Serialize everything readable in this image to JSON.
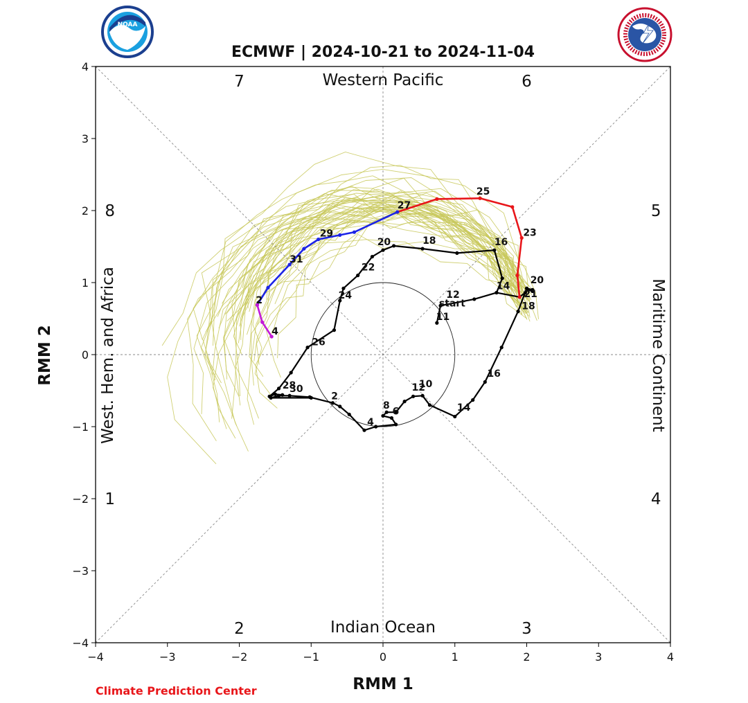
{
  "chart_data": {
    "type": "line",
    "title": "ECMWF | 2024-10-21 to 2024-11-04",
    "xlabel": "RMM 1",
    "ylabel": "RMM 2",
    "xlim": [
      -4,
      4
    ],
    "ylim": [
      -4,
      4
    ],
    "xticks": [
      -4,
      -3,
      -2,
      -1,
      0,
      1,
      2,
      3,
      4
    ],
    "yticks": [
      -4,
      -3,
      -2,
      -1,
      0,
      1,
      2,
      3,
      4
    ],
    "tick_labels": [
      "−4",
      "−3",
      "−2",
      "−1",
      "0",
      "1",
      "2",
      "3",
      "4"
    ],
    "grid": false,
    "region_labels": [
      "Western Pacific",
      "Indian Ocean",
      "West. Hem. and Africa",
      "Maritime Continent"
    ],
    "phase_labels": [
      {
        "phase": "1",
        "x": -3.8,
        "y": -2.0
      },
      {
        "phase": "2",
        "x": -2.0,
        "y": -3.8
      },
      {
        "phase": "3",
        "x": 2.0,
        "y": -3.8
      },
      {
        "phase": "4",
        "x": 3.8,
        "y": -2.0
      },
      {
        "phase": "5",
        "x": 3.8,
        "y": 2.0
      },
      {
        "phase": "6",
        "x": 2.0,
        "y": 3.8
      },
      {
        "phase": "7",
        "x": -2.0,
        "y": 3.8
      },
      {
        "phase": "8",
        "x": -3.8,
        "y": 2.0
      }
    ],
    "unit_circle_radius": 1,
    "series": [
      {
        "kind": "observed",
        "color": "#000000",
        "points": [
          [
            -1.0,
            -0.6
          ],
          [
            -1.56,
            -0.6
          ],
          [
            -1.45,
            -0.57
          ],
          [
            -1.3,
            -0.57
          ],
          [
            -1.02,
            -0.59
          ],
          [
            -0.7,
            -0.67
          ],
          [
            -0.6,
            -0.72
          ],
          [
            -0.47,
            -0.83
          ],
          [
            -0.26,
            -1.05
          ],
          [
            -0.1,
            -1.0
          ],
          [
            0.18,
            -0.97
          ],
          [
            0.12,
            -0.88
          ],
          [
            0.0,
            -0.85
          ],
          [
            0.05,
            -0.8
          ],
          [
            0.18,
            -0.8
          ],
          [
            0.3,
            -0.65
          ],
          [
            0.42,
            -0.58
          ],
          [
            0.55,
            -0.57
          ],
          [
            0.65,
            -0.7
          ],
          [
            1.0,
            -0.86
          ],
          [
            1.25,
            -0.63
          ],
          [
            1.42,
            -0.38
          ],
          [
            1.65,
            0.1
          ],
          [
            1.88,
            0.6
          ],
          [
            2.0,
            0.92
          ],
          [
            2.08,
            0.9
          ],
          [
            2.08,
            0.88
          ],
          [
            2.02,
            0.9
          ],
          [
            1.98,
            0.86
          ],
          [
            1.9,
            0.8
          ],
          [
            1.58,
            0.86
          ],
          [
            1.66,
            1.06
          ],
          [
            1.55,
            1.45
          ],
          [
            1.03,
            1.41
          ],
          [
            0.55,
            1.47
          ],
          [
            0.15,
            1.51
          ],
          [
            0.0,
            1.45
          ],
          [
            -0.15,
            1.36
          ],
          [
            -0.35,
            1.1
          ],
          [
            -0.55,
            0.92
          ],
          [
            -0.6,
            0.75
          ],
          [
            -0.68,
            0.34
          ],
          [
            -1.05,
            0.1
          ],
          [
            -1.28,
            -0.25
          ],
          [
            -1.45,
            -0.47
          ],
          [
            -1.58,
            -0.58
          ],
          [
            -1.5,
            -0.55
          ],
          [
            -1.4,
            -0.56
          ]
        ],
        "labels": [
          {
            "text": "28",
            "x": -1.4,
            "y": -0.47
          },
          {
            "text": "30",
            "x": -1.3,
            "y": -0.52
          },
          {
            "text": "2",
            "x": -0.72,
            "y": -0.62
          },
          {
            "text": "4",
            "x": -0.22,
            "y": -0.98
          },
          {
            "text": "6",
            "x": 0.13,
            "y": -0.83
          },
          {
            "text": "8",
            "x": 0.0,
            "y": -0.75
          },
          {
            "text": "10",
            "x": 0.5,
            "y": -0.45
          },
          {
            "text": "12",
            "x": 0.4,
            "y": -0.5
          },
          {
            "text": "14",
            "x": 1.03,
            "y": -0.78
          },
          {
            "text": "16",
            "x": 1.45,
            "y": -0.31
          },
          {
            "text": "18",
            "x": 1.93,
            "y": 0.63
          },
          {
            "text": "20",
            "x": 2.05,
            "y": 0.99
          },
          {
            "text": "21",
            "x": 1.96,
            "y": 0.8
          },
          {
            "text": "14",
            "x": 1.58,
            "y": 0.91
          },
          {
            "text": "16",
            "x": 1.55,
            "y": 1.52
          },
          {
            "text": "18",
            "x": 0.55,
            "y": 1.54
          },
          {
            "text": "20",
            "x": -0.08,
            "y": 1.52
          },
          {
            "text": "22",
            "x": -0.3,
            "y": 1.17
          },
          {
            "text": "24",
            "x": -0.62,
            "y": 0.78
          },
          {
            "text": "26",
            "x": -0.99,
            "y": 0.13
          },
          {
            "text": "12",
            "x": 0.88,
            "y": 0.79
          },
          {
            "text": "start",
            "x": 0.78,
            "y": 0.67
          },
          {
            "text": "11",
            "x": 0.74,
            "y": 0.48
          }
        ]
      },
      {
        "kind": "observed-start",
        "color": "#000000",
        "points": [
          [
            0.75,
            0.44
          ],
          [
            0.8,
            0.68
          ],
          [
            1.27,
            0.77
          ],
          [
            1.58,
            0.86
          ]
        ]
      },
      {
        "kind": "forecast-red",
        "color": "#e8161a",
        "points": [
          [
            1.9,
            0.8
          ],
          [
            1.87,
            1.1
          ],
          [
            1.93,
            1.62
          ],
          [
            1.8,
            2.05
          ],
          [
            1.35,
            2.17
          ],
          [
            0.75,
            2.16
          ],
          [
            0.2,
            1.98
          ]
        ],
        "labels": [
          {
            "text": "23",
            "x": 1.95,
            "y": 1.65
          },
          {
            "text": "25",
            "x": 1.3,
            "y": 2.22
          }
        ]
      },
      {
        "kind": "forecast-blue",
        "color": "#1c24e6",
        "points": [
          [
            0.2,
            1.98
          ],
          [
            -0.4,
            1.7
          ],
          [
            -0.6,
            1.66
          ],
          [
            -0.9,
            1.6
          ],
          [
            -1.1,
            1.47
          ],
          [
            -1.3,
            1.25
          ],
          [
            -1.6,
            0.93
          ],
          [
            -1.75,
            0.69
          ]
        ],
        "labels": [
          {
            "text": "27",
            "x": 0.2,
            "y": 2.03
          },
          {
            "text": "29",
            "x": -0.88,
            "y": 1.64
          },
          {
            "text": "31",
            "x": -1.3,
            "y": 1.28
          },
          {
            "text": "2",
            "x": -1.77,
            "y": 0.71
          }
        ]
      },
      {
        "kind": "forecast-magenta",
        "color": "#c21ad8",
        "points": [
          [
            -1.75,
            0.69
          ],
          [
            -1.68,
            0.45
          ],
          [
            -1.55,
            0.25
          ]
        ],
        "labels": [
          {
            "text": "4",
            "x": -1.55,
            "y": 0.28
          }
        ]
      }
    ],
    "ensemble_color": "#c8c85a"
  },
  "footer": {
    "credit": "Climate Prediction Center"
  },
  "logos": {
    "left": "noaa-logo-icon",
    "right": "national-weather-service-logo-icon"
  }
}
